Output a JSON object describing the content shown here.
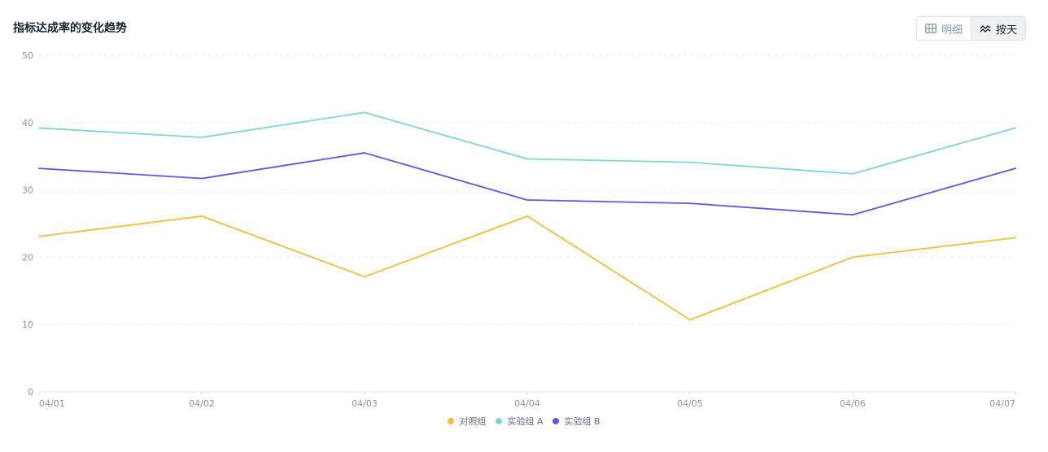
{
  "header": {
    "title": "指标达成率的变化趋势"
  },
  "view_toggle": {
    "items": [
      {
        "label": "明细",
        "icon": "table-icon",
        "active": false
      },
      {
        "label": "按天",
        "icon": "trend-line-icon",
        "active": true
      }
    ]
  },
  "chart_data": {
    "type": "line",
    "x": [
      "04/01",
      "04/02",
      "04/03",
      "04/04",
      "04/05",
      "04/06",
      "04/07"
    ],
    "ylim": [
      0,
      50
    ],
    "yticks": [
      0,
      10,
      20,
      30,
      40,
      50
    ],
    "grid": true,
    "legend_position": "bottom",
    "series": [
      {
        "name": "对照组",
        "color": "#f1bd3a",
        "values": [
          23.1,
          26.1,
          17.1,
          26.1,
          10.7,
          20.0,
          22.9
        ]
      },
      {
        "name": "实验组 A",
        "color": "#7fd3d9",
        "values": [
          39.2,
          37.8,
          41.5,
          34.6,
          34.1,
          32.4,
          39.2
        ]
      },
      {
        "name": "实验组 B",
        "color": "#6c4fe0",
        "values": [
          33.2,
          31.7,
          35.5,
          28.5,
          28.0,
          26.3,
          33.2
        ]
      }
    ]
  },
  "colors": {
    "grid": "#e8e9eb",
    "axis": "#dee0e3",
    "tick_text": "#8f959e"
  }
}
